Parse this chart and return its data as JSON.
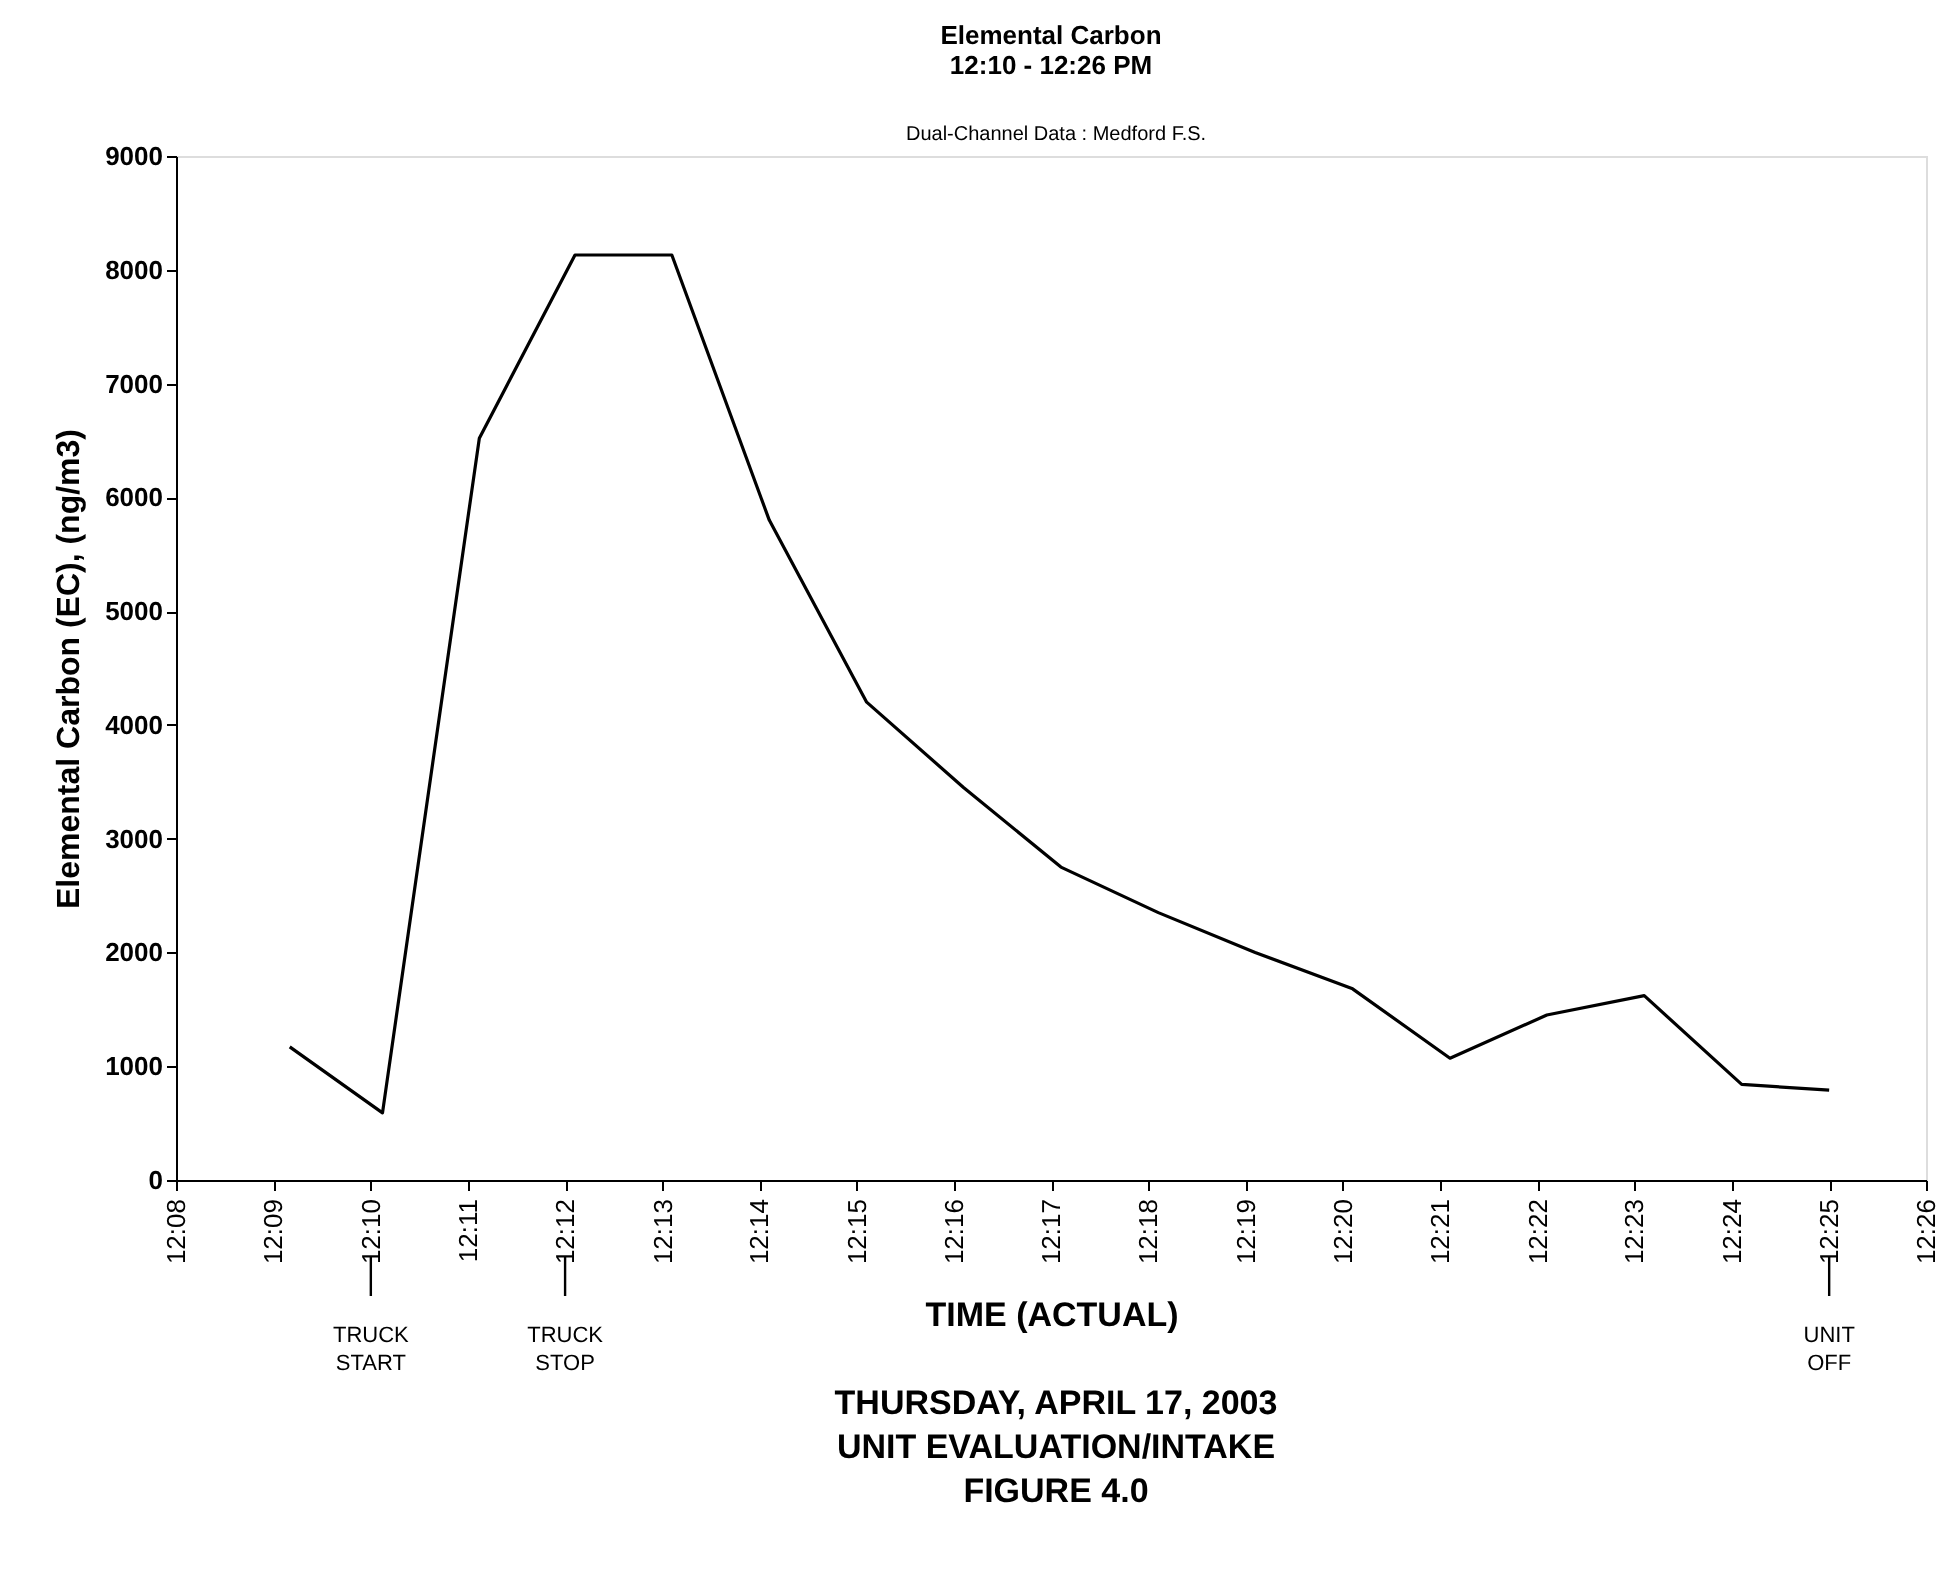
{
  "chart_data": {
    "type": "line",
    "title": "Elemental Carbon",
    "subtitle": "12:10 - 12:26 PM",
    "xlabel": "TIME (ACTUAL)",
    "ylabel": "Elemental Carbon (EC), (ng/m3)",
    "x": [
      12.1528,
      12.1687,
      12.1853,
      12.2017,
      12.2183,
      12.235,
      12.2517,
      12.2683,
      12.285,
      12.3017,
      12.3183,
      12.335,
      12.3517,
      12.3683,
      12.385,
      12.4017,
      12.4167
    ],
    "series": [
      {
        "color": "#000000",
        "values": [
          1170,
          590,
          6520,
          8130,
          8130,
          5800,
          4200,
          3450,
          2750,
          2350,
          2000,
          1680,
          1070,
          1450,
          1620,
          840,
          790
        ]
      }
    ],
    "xlim": [
      12.1333,
      12.4333
    ],
    "xticks": [
      {
        "value": 12.1333,
        "label": "12:08"
      },
      {
        "value": 12.15,
        "label": "12:09"
      },
      {
        "value": 12.1667,
        "label": "12:10"
      },
      {
        "value": 12.1833,
        "label": "12:11"
      },
      {
        "value": 12.2,
        "label": "12:12"
      },
      {
        "value": 12.2167,
        "label": "12:13"
      },
      {
        "value": 12.2333,
        "label": "12:14"
      },
      {
        "value": 12.25,
        "label": "12:15"
      },
      {
        "value": 12.2667,
        "label": "12:16"
      },
      {
        "value": 12.2833,
        "label": "12:17"
      },
      {
        "value": 12.3,
        "label": "12:18"
      },
      {
        "value": 12.3167,
        "label": "12:19"
      },
      {
        "value": 12.3333,
        "label": "12:20"
      },
      {
        "value": 12.35,
        "label": "12:21"
      },
      {
        "value": 12.3667,
        "label": "12:22"
      },
      {
        "value": 12.3833,
        "label": "12:23"
      },
      {
        "value": 12.4,
        "label": "12:24"
      },
      {
        "value": 12.4167,
        "label": "12:25"
      },
      {
        "value": 12.4333,
        "label": "12:26"
      }
    ],
    "ylim": [
      0,
      9000
    ],
    "yticks": [
      0,
      1000,
      2000,
      3000,
      4000,
      5000,
      6000,
      7000,
      8000,
      9000
    ],
    "grid": false,
    "marker": "none",
    "line_style": "solid",
    "annotations": [
      "Dual-Channel Data : Medford F.S.",
      "TRUCK START",
      "TRUCK STOP",
      "UNIT OFF",
      "THURSDAY, APRIL 17, 2003",
      "UNIT EVALUATION/INTAKE",
      "FIGURE 4.0"
    ]
  }
}
